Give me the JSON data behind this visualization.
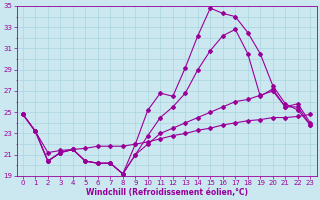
{
  "xlabel": "Windchill (Refroidissement éolien,°C)",
  "background_color": "#cbe8f0",
  "grid_color": "#aad4e0",
  "line_color": "#990099",
  "xlim": [
    -0.5,
    23.5
  ],
  "ylim": [
    19,
    35
  ],
  "yticks": [
    19,
    21,
    23,
    25,
    27,
    29,
    31,
    33,
    35
  ],
  "xticks": [
    0,
    1,
    2,
    3,
    4,
    5,
    6,
    7,
    8,
    9,
    10,
    11,
    12,
    13,
    14,
    15,
    16,
    17,
    18,
    19,
    20,
    21,
    22,
    23
  ],
  "line_a_y": [
    24.8,
    23.2,
    20.4,
    21.2,
    21.5,
    20.4,
    20.2,
    20.2,
    19.2,
    22.0,
    25.2,
    26.8,
    26.5,
    29.2,
    32.2,
    34.8,
    34.3,
    34.0,
    32.5,
    30.5,
    27.5,
    25.8,
    25.2,
    23.8
  ],
  "line_b_y": [
    24.8,
    23.2,
    20.4,
    21.2,
    21.5,
    20.4,
    20.2,
    20.2,
    19.2,
    21.0,
    22.8,
    24.5,
    25.5,
    26.8,
    29.0,
    30.8,
    32.2,
    32.8,
    30.5,
    26.5,
    27.2,
    25.5,
    25.8,
    24.0
  ],
  "line_c_y": [
    24.8,
    23.2,
    21.2,
    21.4,
    21.5,
    21.6,
    21.8,
    21.8,
    21.8,
    22.0,
    22.2,
    22.5,
    22.8,
    23.0,
    23.3,
    23.5,
    23.8,
    24.0,
    24.2,
    24.3,
    24.5,
    24.5,
    24.6,
    24.8
  ],
  "line_d_y": [
    24.8,
    23.2,
    20.4,
    21.2,
    21.5,
    20.4,
    20.2,
    20.2,
    19.2,
    21.0,
    22.0,
    23.0,
    23.5,
    24.0,
    24.5,
    25.0,
    25.5,
    26.0,
    26.2,
    26.6,
    27.0,
    25.5,
    25.5,
    23.8
  ]
}
